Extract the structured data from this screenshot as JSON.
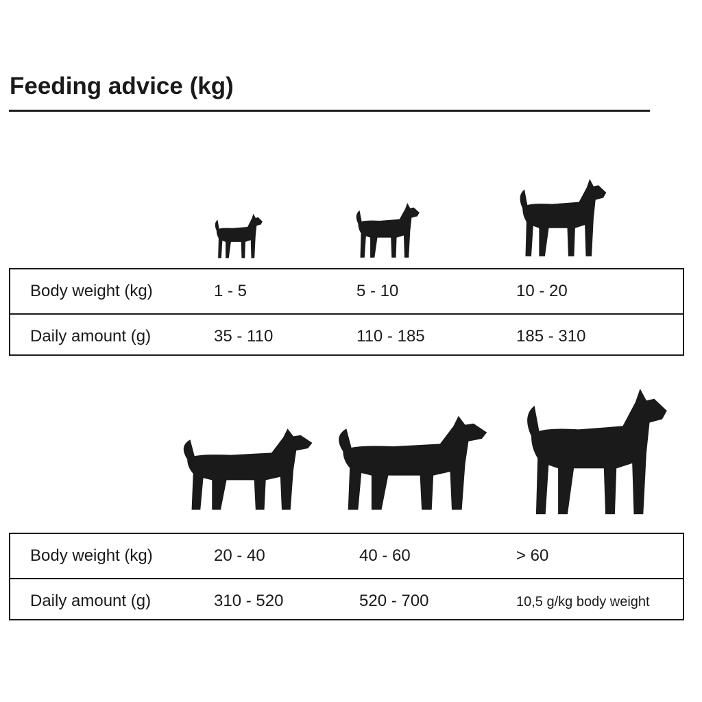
{
  "title": "Feeding advice (kg)",
  "tables": [
    {
      "rows": [
        {
          "label": "Body weight (kg)",
          "values": [
            "1 - 5",
            "5 - 10",
            "10 - 20"
          ]
        },
        {
          "label": "Daily amount (g)",
          "values": [
            "35 - 110",
            "110 - 185",
            "185 - 310"
          ]
        }
      ],
      "icons": [
        "chihuahua-icon",
        "pug-icon",
        "husky-icon"
      ]
    },
    {
      "rows": [
        {
          "label": "Body weight (kg)",
          "values": [
            "20 - 40",
            "40 - 60",
            "> 60"
          ]
        },
        {
          "label": "Daily amount (g)",
          "values": [
            "310 - 520",
            "520 - 700",
            "10,5 g/kg body weight"
          ]
        }
      ],
      "icons": [
        "labrador-icon",
        "running-dog-icon",
        "great-dane-icon"
      ]
    }
  ],
  "colors": {
    "ink": "#1a1a1a",
    "background": "#ffffff"
  }
}
